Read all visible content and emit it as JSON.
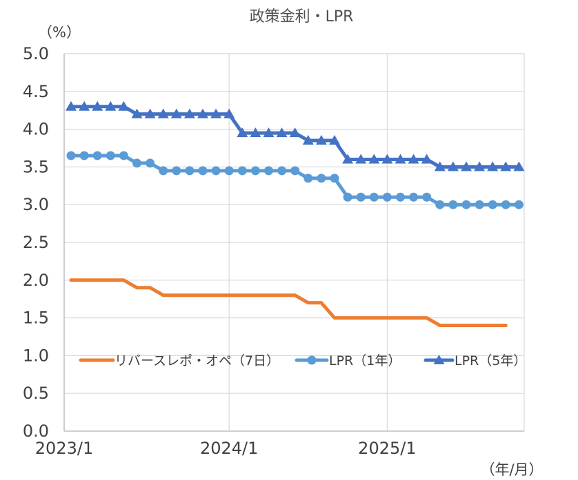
{
  "chart_data": {
    "type": "line",
    "title": "政策金利・LPR",
    "ylabel": "（%）",
    "xlabel": "（年/月）",
    "ylim": [
      0,
      5.0
    ],
    "yticks": [
      "0.0",
      "0.5",
      "1.0",
      "1.5",
      "2.0",
      "2.5",
      "3.0",
      "3.5",
      "4.0",
      "4.5",
      "5.0"
    ],
    "xticks": [
      {
        "label": "2023/1",
        "index": 0
      },
      {
        "label": "2024/1",
        "index": 12
      },
      {
        "label": "2025/1",
        "index": 24
      }
    ],
    "grid": true,
    "legend_position": "bottom-center",
    "series": [
      {
        "name": "リバースレポ・オペ（7日）",
        "color": "#ED7D31",
        "marker": "none",
        "values": [
          2.0,
          2.0,
          2.0,
          2.0,
          2.0,
          1.9,
          1.9,
          1.8,
          1.8,
          1.8,
          1.8,
          1.8,
          1.8,
          1.8,
          1.8,
          1.8,
          1.8,
          1.8,
          1.7,
          1.7,
          1.5,
          1.5,
          1.5,
          1.5,
          1.5,
          1.5,
          1.5,
          1.5,
          1.4,
          1.4,
          1.4,
          1.4,
          1.4,
          1.4
        ]
      },
      {
        "name": "LPR（1年）",
        "color": "#5B9BD5",
        "marker": "circle",
        "values": [
          3.65,
          3.65,
          3.65,
          3.65,
          3.65,
          3.55,
          3.55,
          3.45,
          3.45,
          3.45,
          3.45,
          3.45,
          3.45,
          3.45,
          3.45,
          3.45,
          3.45,
          3.45,
          3.35,
          3.35,
          3.35,
          3.1,
          3.1,
          3.1,
          3.1,
          3.1,
          3.1,
          3.1,
          3.0,
          3.0,
          3.0,
          3.0,
          3.0,
          3.0,
          3.0
        ]
      },
      {
        "name": "LPR（5年）",
        "color": "#4472C4",
        "marker": "triangle",
        "values": [
          4.3,
          4.3,
          4.3,
          4.3,
          4.3,
          4.2,
          4.2,
          4.2,
          4.2,
          4.2,
          4.2,
          4.2,
          4.2,
          3.95,
          3.95,
          3.95,
          3.95,
          3.95,
          3.85,
          3.85,
          3.85,
          3.6,
          3.6,
          3.6,
          3.6,
          3.6,
          3.6,
          3.6,
          3.5,
          3.5,
          3.5,
          3.5,
          3.5,
          3.5,
          3.5
        ]
      }
    ]
  }
}
